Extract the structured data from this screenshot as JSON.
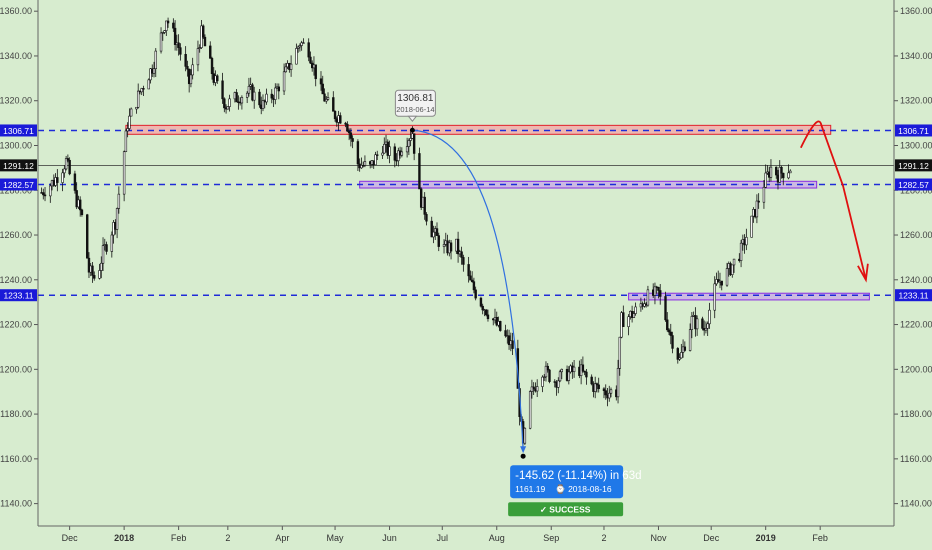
{
  "colors": {
    "background": "#d7eccf",
    "candle": "#111111",
    "level_line": "#1f2bd8",
    "resistance_fill": "#f5a6a6",
    "resistance_stroke": "#e0202a",
    "support_fill": "#c8a8e8",
    "support_stroke": "#8a2be2",
    "projection_arrow": "#e01010",
    "measure_curve": "#3070e0",
    "measure_box": "#1f78e8",
    "success": "#3a9e3a",
    "price_label_bg": "#1a1ad8",
    "last_price_bg": "#111111"
  },
  "chart_data": {
    "type": "candlestick",
    "title": "",
    "xlabel": "",
    "ylabel": "",
    "ylim": [
      1130,
      1365
    ],
    "y_ticks": [
      1140,
      1160,
      1180,
      1200,
      1220,
      1240,
      1260,
      1280,
      1300,
      1320,
      1340,
      1360
    ],
    "y_tick_labels": [
      "1140.00",
      "1160.00",
      "1180.00",
      "1200.00",
      "1220.00",
      "1240.00",
      "1260.00",
      "1280.00",
      "1300.00",
      "1320.00",
      "1340.00",
      "1360.00"
    ],
    "x_range": [
      "2017-11-13",
      "2019-03-15"
    ],
    "x_ticks": [
      {
        "date": "2017-12-01",
        "label": "Dec",
        "bold": false
      },
      {
        "date": "2018-01-01",
        "label": "2018",
        "bold": true
      },
      {
        "date": "2018-02-01",
        "label": "Feb",
        "bold": false
      },
      {
        "date": "2018-03-01",
        "label": "2",
        "bold": false
      },
      {
        "date": "2018-04-01",
        "label": "Apr",
        "bold": false
      },
      {
        "date": "2018-05-01",
        "label": "May",
        "bold": false
      },
      {
        "date": "2018-06-01",
        "label": "Jun",
        "bold": false
      },
      {
        "date": "2018-07-01",
        "label": "Jul",
        "bold": false
      },
      {
        "date": "2018-08-01",
        "label": "Aug",
        "bold": false
      },
      {
        "date": "2018-09-01",
        "label": "Sep",
        "bold": false
      },
      {
        "date": "2018-10-01",
        "label": "2",
        "bold": false
      },
      {
        "date": "2018-11-01",
        "label": "Nov",
        "bold": false
      },
      {
        "date": "2018-12-01",
        "label": "Dec",
        "bold": false
      },
      {
        "date": "2019-01-01",
        "label": "2019",
        "bold": true
      },
      {
        "date": "2019-02-01",
        "label": "Feb",
        "bold": false
      }
    ],
    "path_anchors": [
      [
        "2017-11-15",
        1279
      ],
      [
        "2017-11-22",
        1284
      ],
      [
        "2017-11-29",
        1293
      ],
      [
        "2017-12-04",
        1278
      ],
      [
        "2017-12-08",
        1268
      ],
      [
        "2017-12-12",
        1244
      ],
      [
        "2017-12-16",
        1240
      ],
      [
        "2017-12-20",
        1252
      ],
      [
        "2017-12-27",
        1266
      ],
      [
        "2018-01-03",
        1310
      ],
      [
        "2018-01-10",
        1324
      ],
      [
        "2018-01-17",
        1335
      ],
      [
        "2018-01-25",
        1357
      ],
      [
        "2018-02-01",
        1344
      ],
      [
        "2018-02-07",
        1328
      ],
      [
        "2018-02-14",
        1350
      ],
      [
        "2018-02-21",
        1330
      ],
      [
        "2018-02-28",
        1318
      ],
      [
        "2018-03-07",
        1322
      ],
      [
        "2018-03-14",
        1324
      ],
      [
        "2018-03-21",
        1318
      ],
      [
        "2018-03-28",
        1324
      ],
      [
        "2018-04-04",
        1334
      ],
      [
        "2018-04-11",
        1346
      ],
      [
        "2018-04-16",
        1343
      ],
      [
        "2018-04-23",
        1324
      ],
      [
        "2018-04-30",
        1314
      ],
      [
        "2018-05-07",
        1312
      ],
      [
        "2018-05-14",
        1292
      ],
      [
        "2018-05-21",
        1290
      ],
      [
        "2018-05-28",
        1300
      ],
      [
        "2018-06-04",
        1294
      ],
      [
        "2018-06-08",
        1300
      ],
      [
        "2018-06-14",
        1306
      ],
      [
        "2018-06-18",
        1278
      ],
      [
        "2018-06-25",
        1262
      ],
      [
        "2018-07-02",
        1254
      ],
      [
        "2018-07-09",
        1255
      ],
      [
        "2018-07-16",
        1240
      ],
      [
        "2018-07-23",
        1230
      ],
      [
        "2018-07-30",
        1222
      ],
      [
        "2018-08-06",
        1214
      ],
      [
        "2018-08-10",
        1210
      ],
      [
        "2018-08-13",
        1190
      ],
      [
        "2018-08-16",
        1165
      ],
      [
        "2018-08-20",
        1188
      ],
      [
        "2018-08-27",
        1200
      ],
      [
        "2018-09-03",
        1195
      ],
      [
        "2018-09-10",
        1198
      ],
      [
        "2018-09-17",
        1200
      ],
      [
        "2018-09-24",
        1193
      ],
      [
        "2018-10-01",
        1190
      ],
      [
        "2018-10-08",
        1190
      ],
      [
        "2018-10-11",
        1222
      ],
      [
        "2018-10-18",
        1225
      ],
      [
        "2018-10-25",
        1232
      ],
      [
        "2018-11-01",
        1234
      ],
      [
        "2018-11-08",
        1215
      ],
      [
        "2018-11-13",
        1204
      ],
      [
        "2018-11-20",
        1222
      ],
      [
        "2018-11-27",
        1218
      ],
      [
        "2018-12-04",
        1238
      ],
      [
        "2018-12-11",
        1244
      ],
      [
        "2018-12-18",
        1253
      ],
      [
        "2018-12-24",
        1266
      ],
      [
        "2018-12-31",
        1283
      ],
      [
        "2019-01-04",
        1290
      ],
      [
        "2019-01-08",
        1287
      ],
      [
        "2019-01-15",
        1290
      ]
    ],
    "levels": [
      {
        "name": "upper",
        "price": 1306.71,
        "label": "1306.71"
      },
      {
        "name": "middle",
        "price": 1282.57,
        "label": "1282.57"
      },
      {
        "name": "lower",
        "price": 1233.11,
        "label": "1233.11"
      }
    ],
    "last_price": {
      "price": 1291.12,
      "label": "1291.12"
    },
    "zones": [
      {
        "name": "resistance",
        "from": "2018-01-02",
        "to": "2019-02-07",
        "low": 1305,
        "high": 1309
      },
      {
        "name": "support-mid",
        "from": "2018-05-15",
        "to": "2019-01-30",
        "low": 1281,
        "high": 1284
      },
      {
        "name": "support-low",
        "from": "2018-10-15",
        "to": "2019-03-01",
        "low": 1231,
        "high": 1234
      }
    ],
    "projection": [
      [
        "2019-01-21",
        1299
      ],
      [
        "2019-01-31",
        1309
      ],
      [
        "2019-02-14",
        1282
      ],
      [
        "2019-02-27",
        1240
      ]
    ],
    "measure": {
      "start": {
        "date": "2018-06-14",
        "price": 1306.81
      },
      "end": {
        "date": "2018-08-16",
        "price": 1161.19
      },
      "start_price_label": "1306.81",
      "start_date_label": "2018-06-14",
      "change_label": "-145.62 (-11.14%) in 63d",
      "end_price_label": "1161.19",
      "end_date_label": "2018-08-16",
      "status_label": "✓ SUCCESS"
    }
  }
}
